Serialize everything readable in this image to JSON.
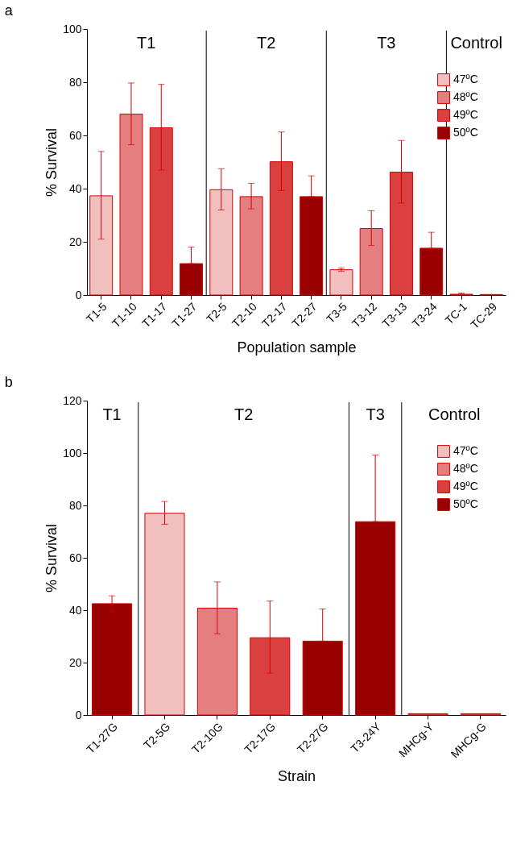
{
  "chart_data": [
    {
      "type": "bar",
      "title": "a",
      "xlabel": "Population sample",
      "ylabel": "% Survival",
      "categories": [
        "T1-5",
        "T1-10",
        "T1-17",
        "T1-27",
        "T2-5",
        "T2-10",
        "T2-17",
        "T2-27",
        "T3-5",
        "T3-12",
        "T3-13",
        "T3-24",
        "TC-1",
        "TC-29"
      ],
      "series": [
        {
          "name": "47ºC",
          "color": "#f2bfbf",
          "values": [
            37.3,
            null,
            null,
            null,
            39.6,
            null,
            null,
            null,
            9.5,
            null,
            null,
            null,
            null,
            null
          ],
          "errors": [
            [
              21,
              54
            ],
            null,
            null,
            null,
            [
              32,
              47.5
            ],
            null,
            null,
            null,
            [
              8.9,
              10.2
            ],
            null,
            null,
            null,
            null,
            null
          ]
        },
        {
          "name": "48ºC",
          "color": "#e57f7f",
          "values": [
            null,
            68,
            null,
            null,
            null,
            37,
            null,
            null,
            null,
            25,
            null,
            null,
            null,
            null
          ],
          "errors": [
            null,
            [
              56.5,
              79.7
            ],
            null,
            null,
            null,
            [
              32.4,
              42
            ],
            null,
            null,
            null,
            [
              18.6,
              31.7
            ],
            null,
            null,
            null,
            null
          ]
        },
        {
          "name": "49ºC",
          "color": "#da4040",
          "values": [
            null,
            null,
            62.9,
            null,
            null,
            null,
            50.1,
            null,
            null,
            null,
            46.2,
            null,
            0.3,
            0.2
          ],
          "errors": [
            null,
            null,
            [
              47,
              79.2
            ],
            null,
            null,
            null,
            [
              39.3,
              61.3
            ],
            null,
            null,
            null,
            [
              34.6,
              58.1
            ],
            null,
            [
              0.3,
              0.7
            ],
            null
          ]
        },
        {
          "name": "50ºC",
          "color": "#990000",
          "values": [
            null,
            null,
            null,
            11.8,
            null,
            null,
            null,
            37,
            null,
            null,
            null,
            17.6,
            null,
            null
          ],
          "errors": [
            null,
            null,
            null,
            [
              11.8,
              18
            ],
            null,
            null,
            null,
            [
              37,
              44.8
            ],
            null,
            null,
            null,
            [
              17.6,
              23.6
            ],
            null,
            null
          ]
        }
      ],
      "ylim": [
        0,
        100
      ],
      "yticks": [
        0,
        20,
        40,
        60,
        80,
        100
      ],
      "legend": "top right",
      "annotations": [
        "T1",
        "T2",
        "T3",
        "Control"
      ]
    },
    {
      "type": "bar",
      "title": "b",
      "xlabel": "Strain",
      "ylabel": "% Survival",
      "categories": [
        "T1-27G",
        "T2-5G",
        "T2-10G",
        "T2-17G",
        "T2-27G",
        "T3-24Y",
        "MHCg-Y",
        "MHCg-G"
      ],
      "series": [
        {
          "name": "47ºC",
          "color": "#f2bfbf",
          "values": [
            null,
            77,
            null,
            null,
            null,
            null,
            null,
            null
          ],
          "errors": [
            null,
            [
              72.8,
              81.5
            ],
            null,
            null,
            null,
            null,
            null,
            null
          ]
        },
        {
          "name": "48ºC",
          "color": "#e57f7f",
          "values": [
            null,
            null,
            40.8,
            null,
            null,
            null,
            null,
            null
          ],
          "errors": [
            null,
            null,
            [
              31,
              50.8
            ],
            null,
            null,
            null,
            null,
            null
          ]
        },
        {
          "name": "49ºC",
          "color": "#da4040",
          "values": [
            null,
            null,
            null,
            29.5,
            null,
            null,
            0.5,
            0.5
          ],
          "errors": [
            null,
            null,
            null,
            [
              16,
              43.5
            ],
            null,
            null,
            null,
            null
          ]
        },
        {
          "name": "50ºC",
          "color": "#990000",
          "values": [
            42.5,
            null,
            null,
            null,
            28.2,
            73.8,
            null,
            null
          ],
          "errors": [
            [
              39.5,
              45.5
            ],
            null,
            null,
            null,
            [
              28.2,
              40.5
            ],
            [
              73.8,
              99.2
            ],
            null,
            null
          ]
        }
      ],
      "ylim": [
        0,
        120
      ],
      "yticks": [
        0,
        20,
        40,
        60,
        80,
        100,
        120
      ],
      "legend": "top right",
      "annotations": [
        "T1",
        "T2",
        "T3",
        "Control"
      ]
    }
  ]
}
